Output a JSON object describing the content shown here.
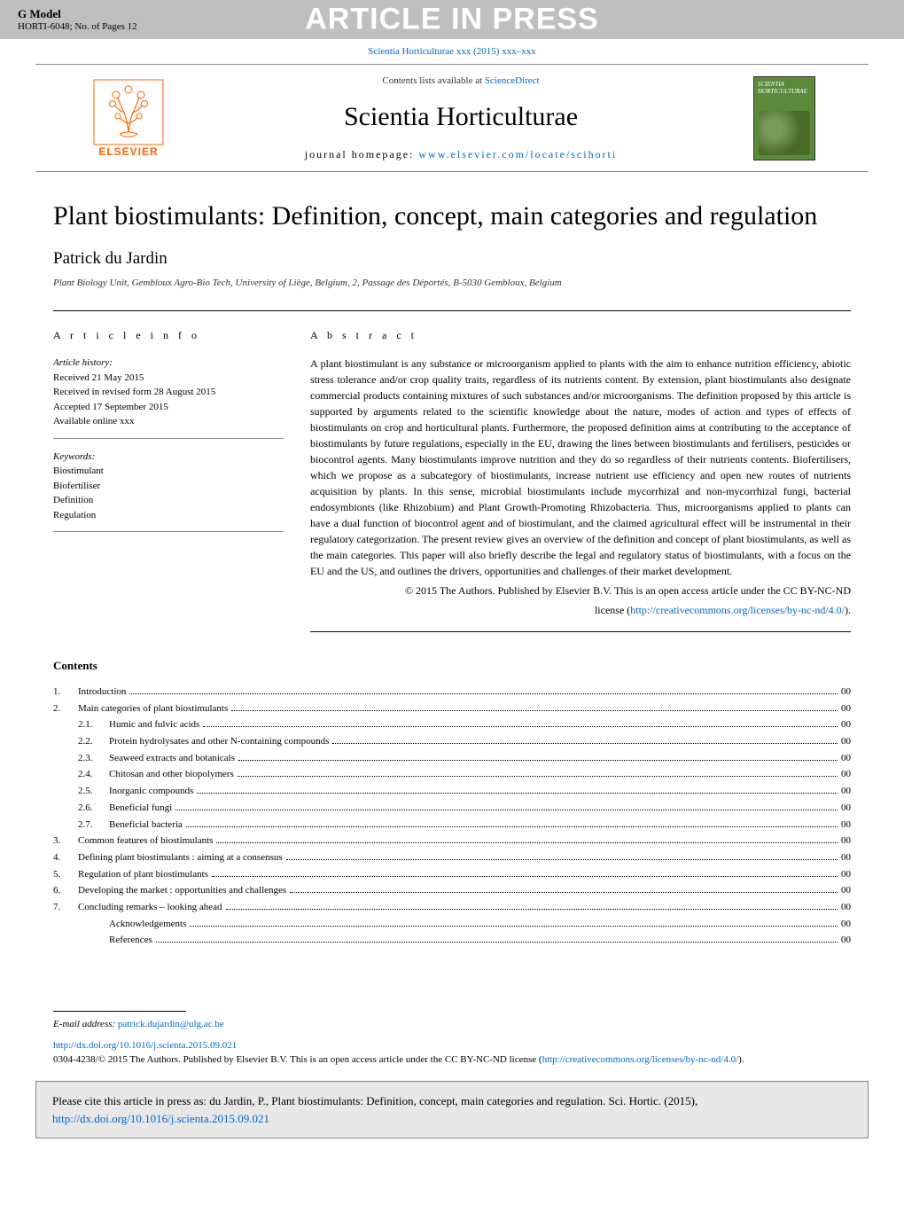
{
  "header": {
    "g_model": "G Model",
    "model_line": "HORTI-6048;   No. of Pages 12",
    "in_press": "ARTICLE IN PRESS",
    "citation": "Scientia Horticulturae xxx (2015) xxx–xxx"
  },
  "journal_header": {
    "contents_prefix": "Contents lists available at ",
    "contents_link": "ScienceDirect",
    "journal_name": "Scientia Horticulturae",
    "homepage_prefix": "journal homepage: ",
    "homepage_url": "www.elsevier.com/locate/scihorti",
    "publisher": "ELSEVIER",
    "cover_title": "SCIENTIA HORTICULTURAE"
  },
  "article": {
    "title": "Plant biostimulants: Definition, concept, main categories and regulation",
    "author": "Patrick du Jardin",
    "affiliation": "Plant Biology Unit, Gembloux Agro-Bio Tech, University of Liège, Belgium, 2, Passage des Déportés, B-5030 Gembloux, Belgium"
  },
  "info": {
    "label": "A R T I C L E   I N F O",
    "history_title": "Article history:",
    "received": "Received 21 May 2015",
    "revised": "Received in revised form 28 August 2015",
    "accepted": "Accepted 17 September 2015",
    "online": "Available online xxx",
    "keywords_title": "Keywords:",
    "keywords": [
      "Biostimulant",
      "Biofertiliser",
      "Definition",
      "Regulation"
    ]
  },
  "abstract": {
    "label": "A B S T R A C T",
    "text": "A plant biostimulant is any substance or microorganism applied to plants with the aim to enhance nutrition efficiency, abiotic stress tolerance and/or crop quality traits, regardless of its nutrients content. By extension, plant biostimulants also designate commercial products containing mixtures of such substances and/or microorganisms. The definition proposed by this article is supported by arguments related to the scientific knowledge about the nature, modes of action and types of effects of biostimulants on crop and horticultural plants. Furthermore, the proposed definition aims at contributing to the acceptance of biostimulants by future regulations, especially in the EU, drawing the lines between biostimulants and fertilisers, pesticides or biocontrol agents. Many biostimulants improve nutrition and they do so regardless of their nutrients contents. Biofertilisers, which we propose as a subcategory of biostimulants, increase nutrient use efficiency and open new routes of nutrients acquisition by plants. In this sense, microbial biostimulants include mycorrhizal and non-mycorrhizal fungi, bacterial endosymbionts (like Rhizobium) and Plant Growth-Promoting Rhizobacteria. Thus, microorganisms applied to plants can have a dual function of biocontrol agent and of biostimulant, and the claimed agricultural effect will be instrumental in their regulatory categorization. The present review gives an overview of the definition and concept of plant biostimulants, as well as the main categories. This paper will also briefly describe the legal and regulatory status of biostimulants, with a focus on the EU and the US, and outlines the drivers, opportunities and challenges of their market development.",
    "copyright": "© 2015 The Authors. Published by Elsevier B.V. This is an open access article under the CC BY-NC-ND",
    "license_prefix": "license (",
    "license_url": "http://creativecommons.org/licenses/by-nc-nd/4.0/",
    "license_suffix": ")."
  },
  "contents": {
    "heading": "Contents",
    "items": [
      {
        "num": "1.",
        "title": "Introduction",
        "page": "00"
      },
      {
        "num": "2.",
        "title": "Main categories of plant biostimulants",
        "page": "00"
      },
      {
        "num": "2.1.",
        "title": "Humic and fulvic acids",
        "page": "00",
        "sub": true
      },
      {
        "num": "2.2.",
        "title": "Protein hydrolysates and other N-containing compounds",
        "page": "00",
        "sub": true
      },
      {
        "num": "2.3.",
        "title": "Seaweed extracts and botanicals",
        "page": "00",
        "sub": true
      },
      {
        "num": "2.4.",
        "title": "Chitosan and other biopolymers",
        "page": "00",
        "sub": true
      },
      {
        "num": "2.5.",
        "title": "Inorganic compounds",
        "page": "00",
        "sub": true
      },
      {
        "num": "2.6.",
        "title": "Beneficial fungi",
        "page": "00",
        "sub": true
      },
      {
        "num": "2.7.",
        "title": "Beneficial bacteria",
        "page": "00",
        "sub": true
      },
      {
        "num": "3.",
        "title": "Common features of biostimulants",
        "page": "00"
      },
      {
        "num": "4.",
        "title": "Defining plant biostimulants : aiming at a consensus",
        "page": "00"
      },
      {
        "num": "5.",
        "title": "Regulation of plant biostimulants",
        "page": "00"
      },
      {
        "num": "6.",
        "title": "Developing the market : opportunities and challenges",
        "page": "00"
      },
      {
        "num": "7.",
        "title": "Concluding remarks – looking ahead",
        "page": "00"
      },
      {
        "num": "",
        "title": "Acknowledgements",
        "page": "00",
        "sub": true
      },
      {
        "num": "",
        "title": "References",
        "page": "00",
        "sub": true
      }
    ]
  },
  "footer": {
    "email_label": "E-mail address: ",
    "email": "patrick.dujardin@ulg.ac.be",
    "doi": "http://dx.doi.org/10.1016/j.scienta.2015.09.021",
    "copyright_line": "0304-4238/© 2015 The Authors. Published by Elsevier B.V. This is an open access article under the CC BY-NC-ND license (",
    "copyright_url": "http://creativecommons.org/licenses/by-nc-nd/4.0/",
    "copyright_suffix": ").",
    "cite_prefix": "Please cite this article in press as: du Jardin, P., Plant biostimulants: Definition, concept, main categories and regulation. Sci. Hortic. (2015), ",
    "cite_url": "http://dx.doi.org/10.1016/j.scienta.2015.09.021"
  },
  "styles": {
    "link_color": "#0066cc",
    "header_bg": "#bfbfbf",
    "in_press_color": "#ffffff",
    "elsevier_orange": "#ff6600",
    "cite_box_bg": "#e8e8e8"
  }
}
